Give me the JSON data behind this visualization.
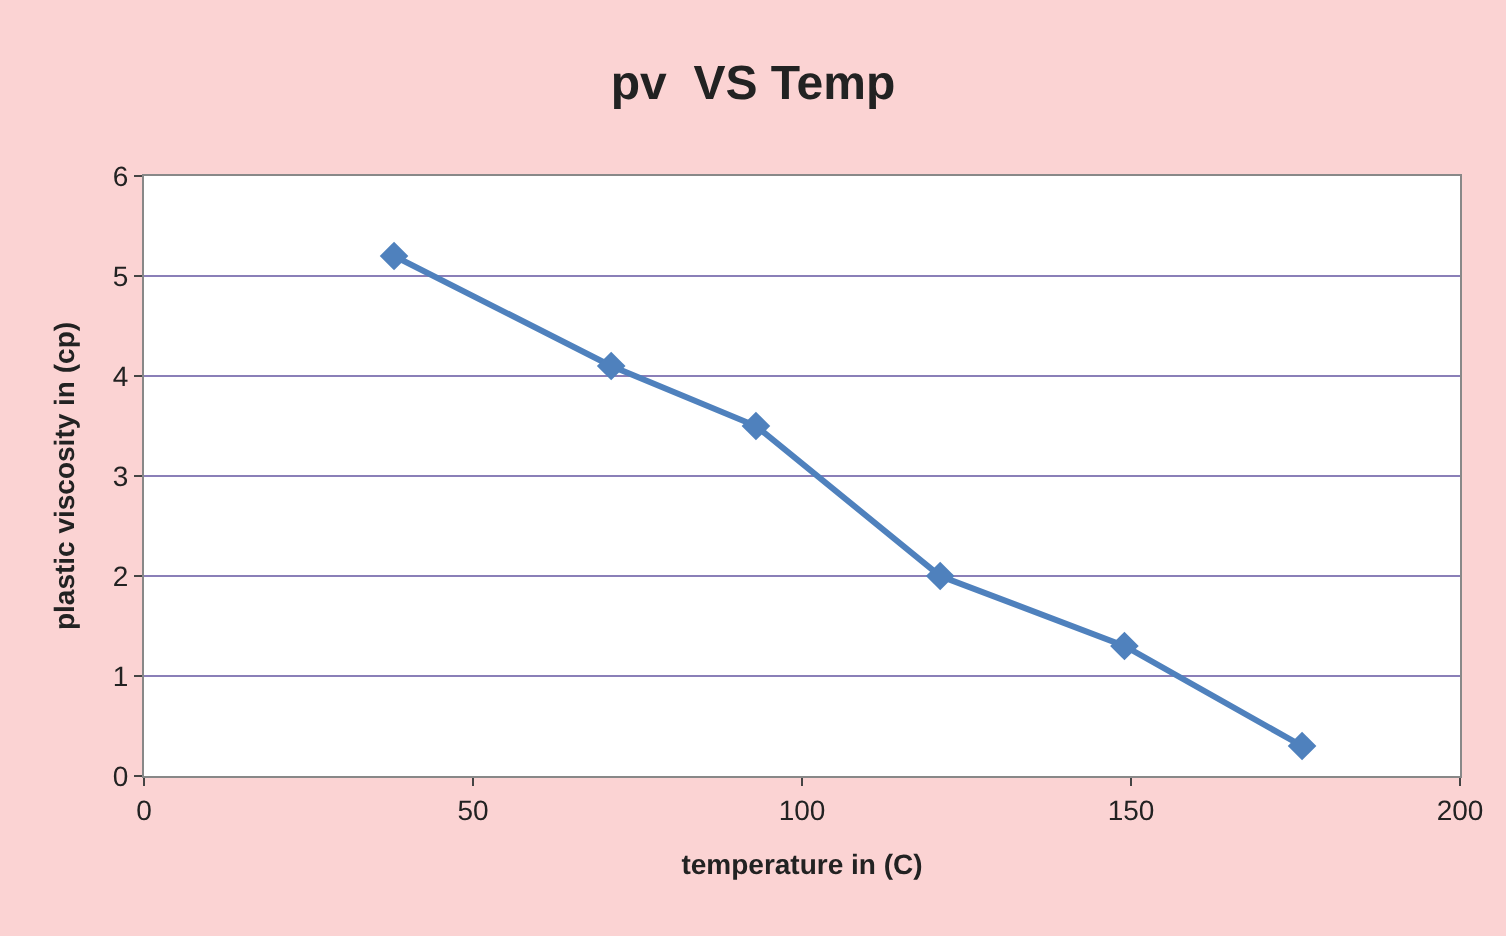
{
  "chart_data": {
    "type": "line",
    "title": "pv  VS Temp",
    "xlabel": "temperature in (C)",
    "ylabel": "plastic viscosity in (cp)",
    "x": [
      38,
      71,
      93,
      121,
      149,
      176
    ],
    "series": [
      {
        "color": "#4f81bd",
        "values": [
          5.2,
          4.1,
          3.5,
          2.0,
          1.3,
          0.3
        ]
      }
    ],
    "xlim": [
      0,
      200
    ],
    "xticks": [
      0,
      50,
      100,
      150,
      200
    ],
    "ylim": [
      0,
      6
    ],
    "yticks": [
      0,
      1,
      2,
      3,
      4,
      5,
      6
    ],
    "grid": "y",
    "marker": "diamond",
    "line_style": "solid",
    "legend": false
  }
}
